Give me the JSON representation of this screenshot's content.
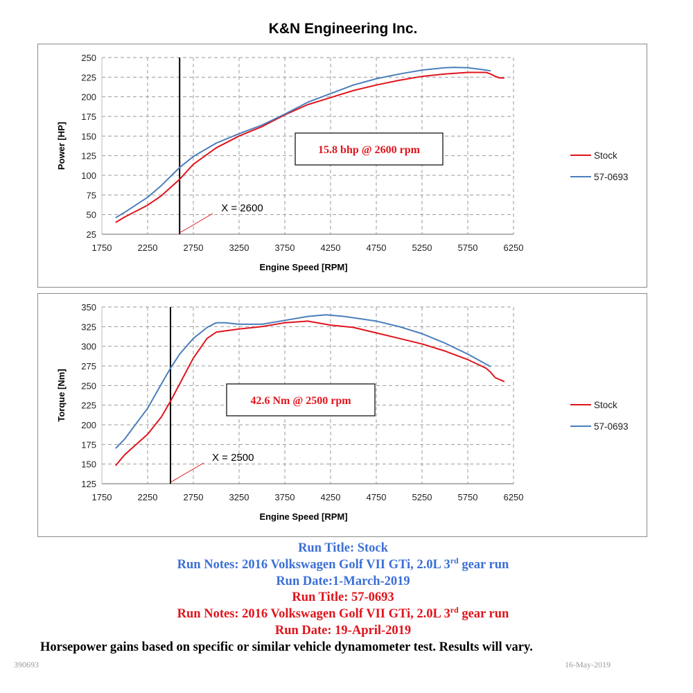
{
  "header": {
    "title": "K&N Engineering Inc."
  },
  "chart_data": [
    {
      "id": "power",
      "type": "line",
      "xlabel": "Engine Speed [RPM]",
      "ylabel": "Power [HP]",
      "xlim": [
        1750,
        6250
      ],
      "ylim": [
        25,
        250
      ],
      "xticks": [
        1750,
        2250,
        2750,
        3250,
        3750,
        4250,
        4750,
        5250,
        5750,
        6250
      ],
      "yticks": [
        25,
        50,
        75,
        100,
        125,
        150,
        175,
        200,
        225,
        250
      ],
      "grid": true,
      "legend_position": "right",
      "marker": {
        "x": 2600,
        "label": "X = 2600"
      },
      "annotation": "15.8 bhp @ 2600 rpm",
      "series": [
        {
          "name": "Stock",
          "color": "#e0141c",
          "points": [
            [
              1900,
              40
            ],
            [
              2000,
              47
            ],
            [
              2250,
              62
            ],
            [
              2400,
              74
            ],
            [
              2600,
              95
            ],
            [
              2750,
              114
            ],
            [
              3000,
              135
            ],
            [
              3250,
              150
            ],
            [
              3500,
              162
            ],
            [
              3750,
              177
            ],
            [
              4000,
              190
            ],
            [
              4250,
              199
            ],
            [
              4500,
              208
            ],
            [
              4750,
              215
            ],
            [
              5000,
              221
            ],
            [
              5250,
              226
            ],
            [
              5500,
              229
            ],
            [
              5750,
              231
            ],
            [
              5950,
              231
            ],
            [
              6000,
              229
            ],
            [
              6050,
              226
            ],
            [
              6100,
              224
            ],
            [
              6150,
              224
            ]
          ]
        },
        {
          "name": "57-0693",
          "color": "#4a7ebb",
          "points": [
            [
              1900,
              46
            ],
            [
              2000,
              53
            ],
            [
              2250,
              72
            ],
            [
              2400,
              87
            ],
            [
              2600,
              110
            ],
            [
              2750,
              124
            ],
            [
              3000,
              141
            ],
            [
              3250,
              153
            ],
            [
              3500,
              164
            ],
            [
              3750,
              178
            ],
            [
              4000,
              193
            ],
            [
              4250,
              204
            ],
            [
              4500,
              215
            ],
            [
              4750,
              223
            ],
            [
              5000,
              229
            ],
            [
              5250,
              234
            ],
            [
              5500,
              237
            ],
            [
              5600,
              237.5
            ],
            [
              5750,
              237
            ],
            [
              5950,
              234
            ],
            [
              6000,
              233
            ]
          ]
        }
      ]
    },
    {
      "id": "torque",
      "type": "line",
      "xlabel": "Engine Speed [RPM]",
      "ylabel": "Torque [Nm]",
      "xlim": [
        1750,
        6250
      ],
      "ylim": [
        125,
        350
      ],
      "xticks": [
        1750,
        2250,
        2750,
        3250,
        3750,
        4250,
        4750,
        5250,
        5750,
        6250
      ],
      "yticks": [
        125,
        150,
        175,
        200,
        225,
        250,
        275,
        300,
        325,
        350
      ],
      "grid": true,
      "legend_position": "right",
      "marker": {
        "x": 2500,
        "label": "X = 2500"
      },
      "annotation": "42.6 Nm @ 2500 rpm",
      "series": [
        {
          "name": "Stock",
          "color": "#e0141c",
          "points": [
            [
              1900,
              148
            ],
            [
              2000,
              162
            ],
            [
              2250,
              188
            ],
            [
              2400,
              210
            ],
            [
              2500,
              230
            ],
            [
              2600,
              252
            ],
            [
              2750,
              285
            ],
            [
              2900,
              310
            ],
            [
              3000,
              318
            ],
            [
              3250,
              322
            ],
            [
              3500,
              325
            ],
            [
              3750,
              330
            ],
            [
              4000,
              332
            ],
            [
              4250,
              327
            ],
            [
              4500,
              324
            ],
            [
              4750,
              317
            ],
            [
              5000,
              310
            ],
            [
              5250,
              303
            ],
            [
              5500,
              294
            ],
            [
              5750,
              283
            ],
            [
              5950,
              272
            ],
            [
              6000,
              267
            ],
            [
              6050,
              260
            ],
            [
              6150,
              255
            ]
          ]
        },
        {
          "name": "57-0693",
          "color": "#4a7ebb",
          "points": [
            [
              1900,
              170
            ],
            [
              2000,
              182
            ],
            [
              2250,
              221
            ],
            [
              2400,
              252
            ],
            [
              2500,
              272
            ],
            [
              2600,
              290
            ],
            [
              2750,
              310
            ],
            [
              2900,
              324
            ],
            [
              3000,
              330
            ],
            [
              3100,
              330
            ],
            [
              3250,
              328
            ],
            [
              3500,
              328
            ],
            [
              3750,
              333
            ],
            [
              4000,
              338
            ],
            [
              4200,
              340
            ],
            [
              4400,
              338
            ],
            [
              4750,
              332
            ],
            [
              5000,
              325
            ],
            [
              5250,
              316
            ],
            [
              5500,
              304
            ],
            [
              5750,
              290
            ],
            [
              6000,
              274
            ]
          ]
        }
      ]
    }
  ],
  "notes": {
    "stock_title": "Run Title: Stock",
    "stock_notes_prefix": "Run Notes: 2016 Volkswagen Golf VII GTi, 2.0L 3",
    "stock_notes_sup": "rd",
    "stock_notes_suffix": " gear run",
    "stock_date": "Run Date:1-March-2019",
    "kn_title": "Run Title: 57-0693",
    "kn_notes_prefix": "Run Notes: 2016 Volkswagen Golf VII GTi, 2.0L 3",
    "kn_notes_sup": "rd",
    "kn_notes_suffix": " gear run",
    "kn_date": "Run Date: 19-April-2019"
  },
  "disclaimer": "Horsepower gains based on specific or similar vehicle dynamometer test. Results will vary.",
  "footer": {
    "left": "390693",
    "right": "16-May-2019"
  }
}
